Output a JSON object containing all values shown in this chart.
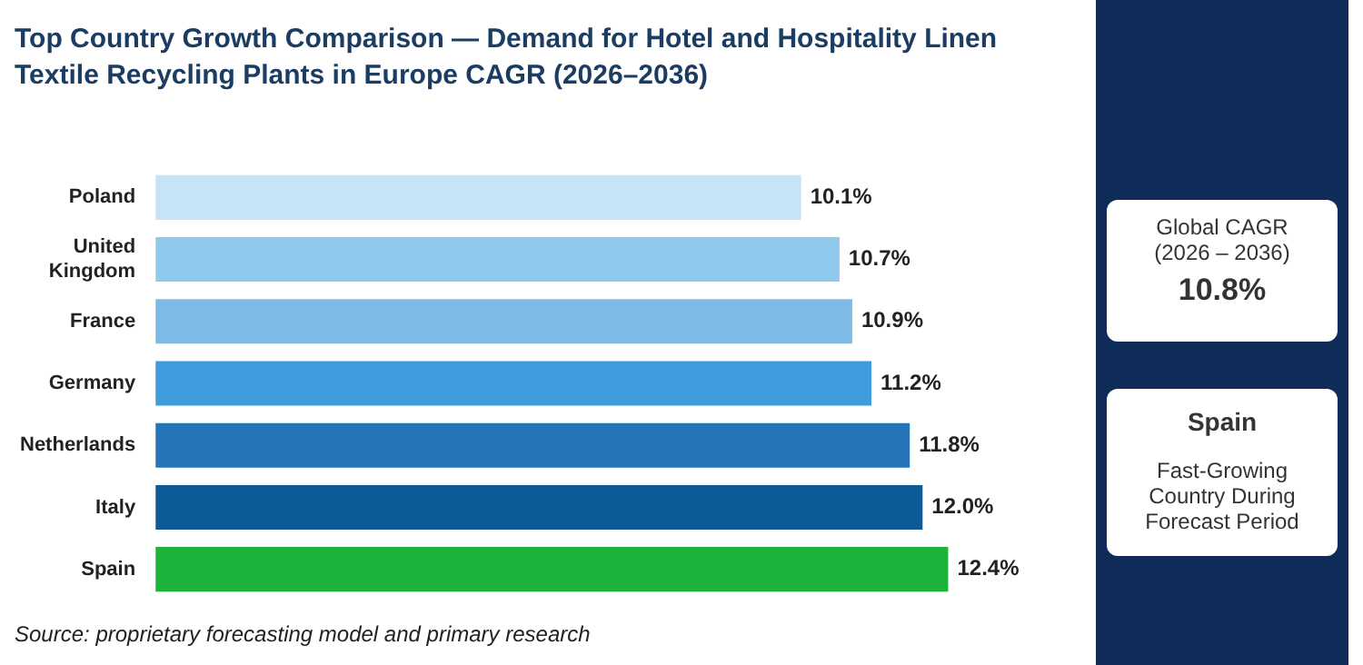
{
  "chart_data": {
    "type": "bar",
    "orientation": "horizontal",
    "title": "Top Country Growth Comparison — Demand for Hotel and Hospitality Linen Textile Recycling Plants in Europe  CAGR (2026–2036)",
    "categories": [
      "Poland",
      "United Kingdom",
      "France",
      "Germany",
      "Netherlands",
      "Italy",
      "Spain"
    ],
    "values": [
      10.1,
      10.7,
      10.9,
      11.2,
      11.8,
      12.0,
      12.4
    ],
    "colors": [
      "#c6e4f5",
      "#8fcaee",
      "#7dbbe6",
      "#3f9bdc",
      "#2474b6",
      "#0c5a96",
      "#1db33a"
    ],
    "value_labels": [
      "10.1%",
      "10.7%",
      "10.9%",
      "11.2%",
      "11.8%",
      "12.0%",
      "12.4%"
    ],
    "annotations": [
      "Source: proprietary forecasting model and primary research",
      "Global CAGR",
      "(2026 – 2036)",
      "10.8%",
      "Spain",
      "Fast-Growing Country During Forecast Period"
    ],
    "legend": false
  }
}
